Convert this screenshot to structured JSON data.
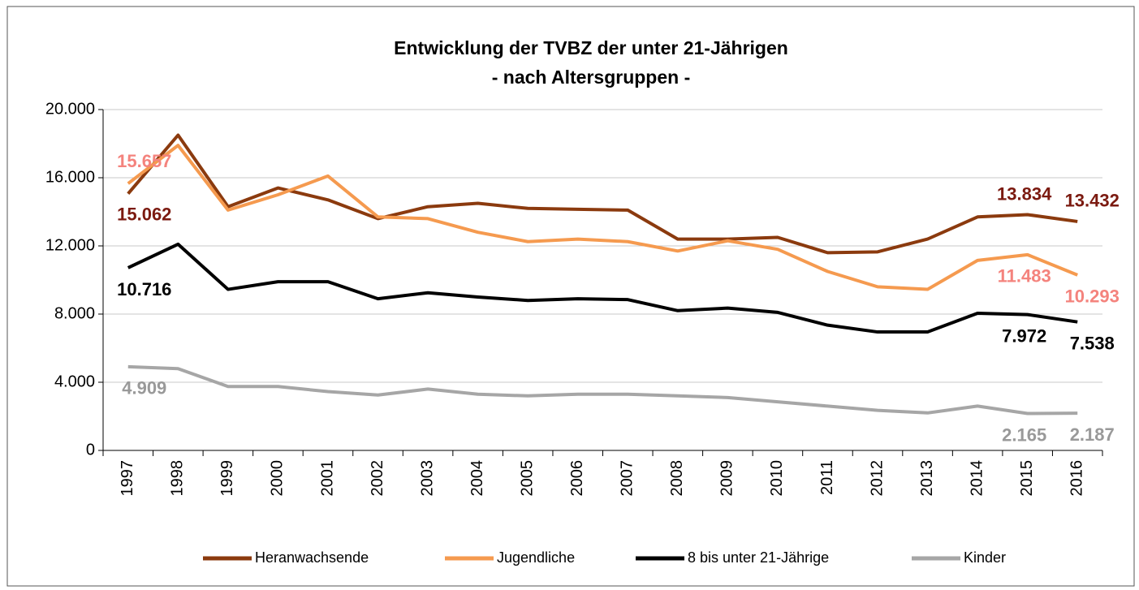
{
  "chart_data": {
    "type": "line",
    "title": "Entwicklung der TVBZ der unter 21-Jährigen",
    "subtitle": "- nach Altersgruppen -",
    "categories": [
      "1997",
      "1998",
      "1999",
      "2000",
      "2001",
      "2002",
      "2003",
      "2004",
      "2005",
      "2006",
      "2007",
      "2008",
      "2009",
      "2010",
      "2011",
      "2012",
      "2013",
      "2014",
      "2015",
      "2016"
    ],
    "ylim": [
      0,
      20000
    ],
    "yticks": [
      0,
      {
        "value": 4000,
        "label": "4.000"
      },
      {
        "value": 8000,
        "label": "8.000"
      },
      {
        "value": 12000,
        "label": "12.000"
      },
      {
        "value": 16000,
        "label": "16.000"
      },
      {
        "value": 20000,
        "label": "20.000"
      }
    ],
    "grid": true,
    "legend": "bottom",
    "series": [
      {
        "name": "Heranwachsende",
        "color": "#8b3a0e",
        "label_color": "#7b1a10",
        "values": [
          15062,
          18500,
          14300,
          15400,
          14700,
          13600,
          14300,
          14500,
          14200,
          14150,
          14100,
          12400,
          12400,
          12500,
          11600,
          11650,
          12400,
          13700,
          13834,
          13432
        ],
        "value_labels": [
          "15.062",
          null,
          null,
          null,
          null,
          null,
          null,
          null,
          null,
          null,
          null,
          null,
          null,
          null,
          null,
          null,
          null,
          null,
          "13.834",
          "13.432"
        ]
      },
      {
        "name": "Jugendliche",
        "color": "#f59a4f",
        "label_color": "#f4837d",
        "values": [
          15657,
          17900,
          14100,
          15000,
          16100,
          13700,
          13600,
          12800,
          12250,
          12400,
          12250,
          11700,
          12300,
          11800,
          10500,
          9600,
          9450,
          11150,
          11483,
          10293
        ],
        "value_labels": [
          "15.657",
          null,
          null,
          null,
          null,
          null,
          null,
          null,
          null,
          null,
          null,
          null,
          null,
          null,
          null,
          null,
          null,
          null,
          "11.483",
          "10.293"
        ]
      },
      {
        "name": "8 bis unter 21-Jährige",
        "color": "#000000",
        "label_color": "#000000",
        "values": [
          10716,
          12100,
          9450,
          9900,
          9900,
          8900,
          9250,
          9000,
          8800,
          8900,
          8850,
          8200,
          8350,
          8100,
          7350,
          6950,
          6950,
          8050,
          7972,
          7538
        ],
        "value_labels": [
          "10.716",
          null,
          null,
          null,
          null,
          null,
          null,
          null,
          null,
          null,
          null,
          null,
          null,
          null,
          null,
          null,
          null,
          null,
          "7.972",
          "7.538"
        ]
      },
      {
        "name": "Kinder",
        "color": "#a6a6a6",
        "label_color": "#999999",
        "values": [
          4909,
          4800,
          3750,
          3750,
          3450,
          3250,
          3600,
          3300,
          3200,
          3300,
          3300,
          3200,
          3100,
          2850,
          2600,
          2350,
          2200,
          2600,
          2165,
          2187
        ],
        "value_labels": [
          "4.909",
          null,
          null,
          null,
          null,
          null,
          null,
          null,
          null,
          null,
          null,
          null,
          null,
          null,
          null,
          null,
          null,
          null,
          "2.165",
          "2.187"
        ]
      }
    ]
  }
}
